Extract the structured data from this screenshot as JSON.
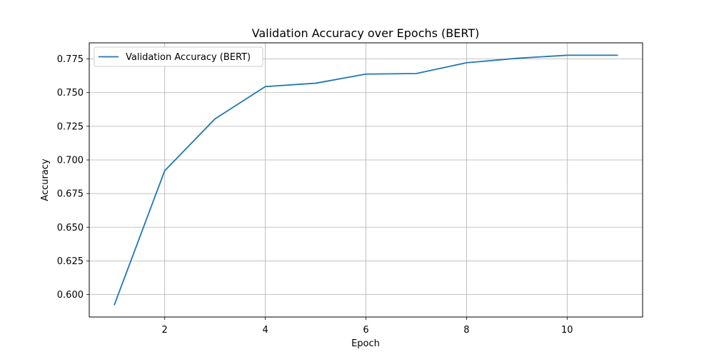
{
  "chart_data": {
    "type": "line",
    "title": "Validation Accuracy over Epochs (BERT)",
    "xlabel": "Epoch",
    "ylabel": "Accuracy",
    "x": [
      1,
      2,
      3,
      4,
      5,
      6,
      7,
      8,
      9,
      10,
      11
    ],
    "series": [
      {
        "name": "Validation Accuracy (BERT)",
        "color": "#1f77b4",
        "values": [
          0.5925,
          0.692,
          0.7305,
          0.7545,
          0.757,
          0.7638,
          0.7642,
          0.7722,
          0.7755,
          0.7778,
          0.7778
        ]
      }
    ],
    "xlim": [
      0.5,
      11.5
    ],
    "ylim": [
      0.5833,
      0.787
    ],
    "xticks": [
      2,
      4,
      6,
      8,
      10
    ],
    "xtick_labels": [
      "2",
      "4",
      "6",
      "8",
      "10"
    ],
    "yticks": [
      0.6,
      0.625,
      0.65,
      0.675,
      0.7,
      0.725,
      0.75,
      0.775
    ],
    "ytick_labels": [
      "0.600",
      "0.625",
      "0.650",
      "0.675",
      "0.700",
      "0.725",
      "0.750",
      "0.775"
    ],
    "grid": true,
    "legend_position": "top-left"
  }
}
